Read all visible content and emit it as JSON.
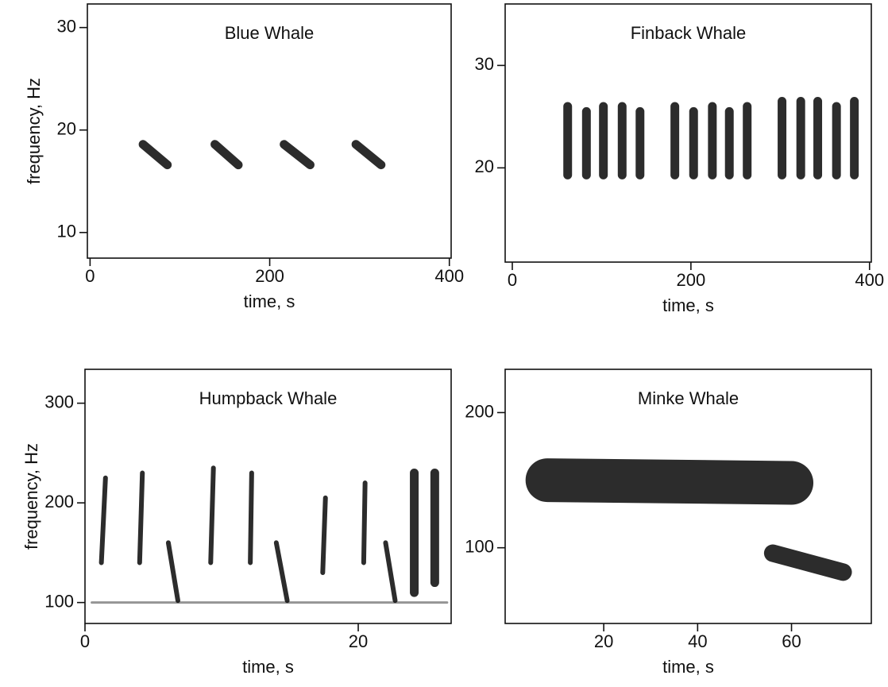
{
  "chart_data": [
    {
      "type": "spectrogram",
      "title": "Blue Whale",
      "xlabel": "time, s",
      "ylabel": "frequency, Hz",
      "xlim": [
        -3,
        402
      ],
      "ylim": [
        7.5,
        32.3
      ],
      "xticks": [
        0,
        200,
        400
      ],
      "yticks": [
        10,
        20,
        30
      ],
      "segments": [
        {
          "x": [
            59,
            86
          ],
          "y": [
            18.6,
            16.6
          ]
        },
        {
          "x": [
            139,
            165
          ],
          "y": [
            18.6,
            16.6
          ]
        },
        {
          "x": [
            216,
            245
          ],
          "y": [
            18.6,
            16.6
          ]
        },
        {
          "x": [
            296,
            324
          ],
          "y": [
            18.6,
            16.6
          ]
        }
      ]
    },
    {
      "type": "spectrogram",
      "title": "Finback Whale",
      "xlabel": "time, s",
      "xlim": [
        -8,
        402
      ],
      "ylim": [
        10.8,
        36
      ],
      "xticks": [
        0,
        200,
        400
      ],
      "yticks": [
        20,
        30
      ],
      "segments": [
        {
          "x": [
            62,
            62
          ],
          "y": [
            19.3,
            26
          ]
        },
        {
          "x": [
            83,
            83
          ],
          "y": [
            19.3,
            25.5
          ]
        },
        {
          "x": [
            102,
            102
          ],
          "y": [
            19.3,
            26
          ]
        },
        {
          "x": [
            123,
            123
          ],
          "y": [
            19.3,
            26
          ]
        },
        {
          "x": [
            143,
            143
          ],
          "y": [
            19.3,
            25.5
          ]
        },
        {
          "x": [
            182,
            182
          ],
          "y": [
            19.3,
            26
          ]
        },
        {
          "x": [
            203,
            203
          ],
          "y": [
            19.3,
            25.5
          ]
        },
        {
          "x": [
            224,
            224
          ],
          "y": [
            19.3,
            26
          ]
        },
        {
          "x": [
            243,
            243
          ],
          "y": [
            19.3,
            25.5
          ]
        },
        {
          "x": [
            263,
            263
          ],
          "y": [
            19.3,
            26
          ]
        },
        {
          "x": [
            302,
            302
          ],
          "y": [
            19.3,
            26.5
          ]
        },
        {
          "x": [
            323,
            323
          ],
          "y": [
            19.3,
            26.5
          ]
        },
        {
          "x": [
            342,
            342
          ],
          "y": [
            19.3,
            26.5
          ]
        },
        {
          "x": [
            363,
            363
          ],
          "y": [
            19.3,
            26
          ]
        },
        {
          "x": [
            383,
            383
          ],
          "y": [
            19.3,
            26.5
          ]
        }
      ]
    },
    {
      "type": "spectrogram",
      "title": "Humpback Whale",
      "xlabel": "time, s",
      "ylabel": "frequency, Hz",
      "xlim": [
        0,
        26.8
      ],
      "ylim": [
        79,
        334
      ],
      "xticks": [
        0,
        20
      ],
      "yticks": [
        100,
        200,
        300
      ],
      "segments": [
        {
          "x": [
            1.2,
            1.5
          ],
          "y": [
            140,
            225
          ]
        },
        {
          "x": [
            4.0,
            4.2
          ],
          "y": [
            140,
            230
          ]
        },
        {
          "x": [
            6.1,
            6.8
          ],
          "y": [
            160,
            102
          ]
        },
        {
          "x": [
            9.2,
            9.4
          ],
          "y": [
            140,
            235
          ]
        },
        {
          "x": [
            12.1,
            12.2
          ],
          "y": [
            140,
            230
          ]
        },
        {
          "x": [
            14.0,
            14.8
          ],
          "y": [
            160,
            102
          ]
        },
        {
          "x": [
            17.4,
            17.6
          ],
          "y": [
            130,
            205
          ]
        },
        {
          "x": [
            20.4,
            20.5
          ],
          "y": [
            140,
            220
          ]
        },
        {
          "x": [
            22.0,
            22.7
          ],
          "y": [
            160,
            102
          ]
        },
        {
          "x": [
            24.1,
            24.1
          ],
          "y": [
            110,
            230
          ]
        },
        {
          "x": [
            25.6,
            25.6
          ],
          "y": [
            120,
            230
          ]
        },
        {
          "x": [
            0.5,
            26.5
          ],
          "y": [
            100,
            100
          ]
        }
      ]
    },
    {
      "type": "spectrogram",
      "title": "Minke Whale",
      "xlabel": "time, s",
      "xlim": [
        -1,
        77
      ],
      "ylim": [
        44,
        232
      ],
      "xticks": [
        20,
        40,
        60
      ],
      "yticks": [
        100,
        200
      ],
      "segments": [
        {
          "x": [
            8,
            60
          ],
          "y": [
            150,
            148
          ]
        },
        {
          "x": [
            56,
            71
          ],
          "y": [
            96,
            82
          ]
        }
      ]
    }
  ]
}
